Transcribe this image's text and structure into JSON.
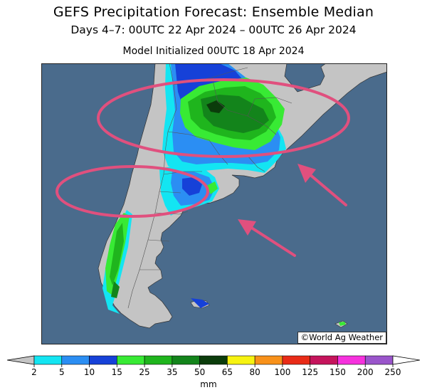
{
  "title": "GEFS Precipitation Forecast: Ensemble Median",
  "subtitle": "Days 4–7: 00UTC 22 Apr 2024 – 00UTC 26 Apr 2024",
  "init": "Model Initialized 00UTC 18 Apr 2024",
  "credit": "©World Ag Weather",
  "colors": {
    "ocean": "#4a6b8c",
    "land": "#c4c4c4",
    "annotation": "#e0507e",
    "border": "#555555"
  },
  "legend": {
    "unit": "mm",
    "levels": [
      "2",
      "5",
      "10",
      "15",
      "25",
      "35",
      "50",
      "65",
      "80",
      "100",
      "125",
      "150",
      "200",
      "250"
    ],
    "bins": [
      {
        "color": "#13e5f2"
      },
      {
        "color": "#2b8ef3"
      },
      {
        "color": "#1641d8"
      },
      {
        "color": "#38ea34"
      },
      {
        "color": "#1fb51d"
      },
      {
        "color": "#13841b"
      },
      {
        "color": "#0b3c0b"
      },
      {
        "color": "#f7f311"
      },
      {
        "color": "#f8911a"
      },
      {
        "color": "#e92b17"
      },
      {
        "color": "#c5145c"
      },
      {
        "color": "#f631dd"
      },
      {
        "color": "#9a55cb"
      }
    ],
    "under_color": "#c4c4c4",
    "over_color": "#ffffff"
  }
}
